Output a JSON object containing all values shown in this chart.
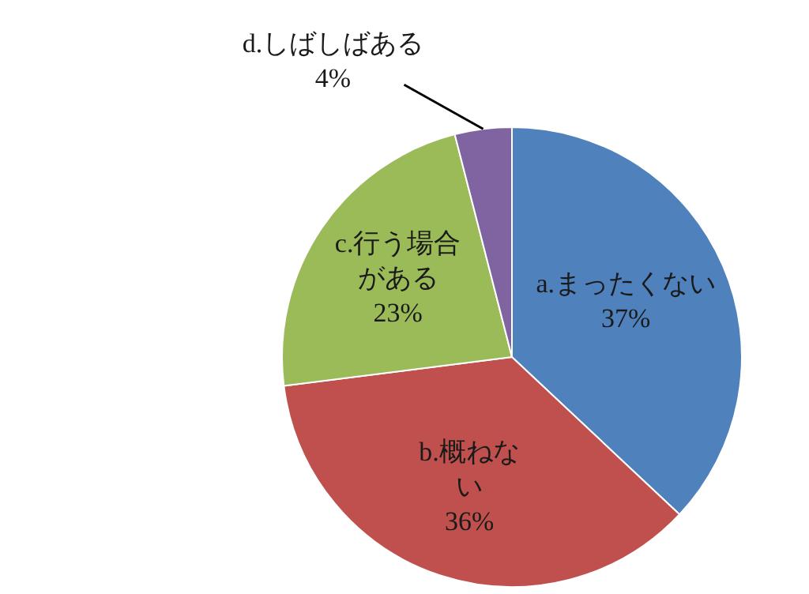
{
  "chart_data": {
    "type": "pie",
    "categories": [
      "a.まったくない",
      "b.概ねない",
      "c.行う場合がある",
      "d.しばしばある"
    ],
    "values": [
      37,
      36,
      23,
      4
    ],
    "colors": [
      "#4f81bd",
      "#c0504d",
      "#9bbb59",
      "#8064a2"
    ],
    "value_labels": [
      "37%",
      "36%",
      "23%",
      "4%"
    ],
    "legend": false
  }
}
